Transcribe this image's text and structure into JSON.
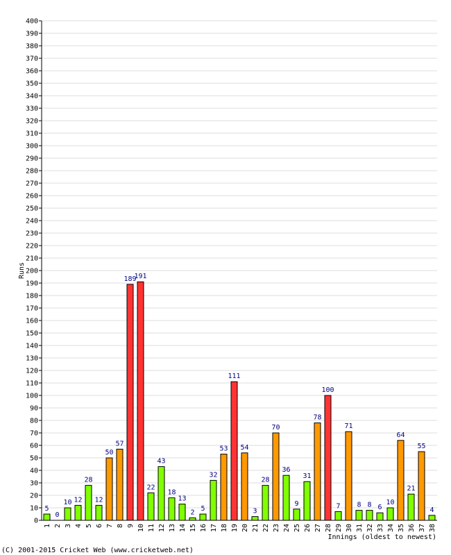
{
  "chart_data": {
    "type": "bar",
    "ylabel": "Runs",
    "xlabel": "Innings (oldest to newest)",
    "ylim": [
      0,
      400
    ],
    "y_ticks": [
      0,
      10,
      20,
      30,
      40,
      50,
      60,
      70,
      80,
      90,
      100,
      110,
      120,
      130,
      140,
      150,
      160,
      170,
      180,
      190,
      200,
      210,
      220,
      230,
      240,
      250,
      260,
      270,
      280,
      290,
      300,
      310,
      320,
      330,
      340,
      350,
      360,
      370,
      380,
      390,
      400
    ],
    "categories": [
      "1",
      "2",
      "3",
      "4",
      "5",
      "6",
      "7",
      "8",
      "9",
      "10",
      "11",
      "12",
      "13",
      "14",
      "15",
      "16",
      "17",
      "18",
      "19",
      "20",
      "21",
      "22",
      "23",
      "24",
      "25",
      "26",
      "27",
      "28",
      "29",
      "30",
      "31",
      "32",
      "33",
      "34",
      "35",
      "36",
      "37",
      "38"
    ],
    "values": [
      5,
      0,
      10,
      12,
      28,
      12,
      50,
      57,
      189,
      191,
      22,
      43,
      18,
      13,
      2,
      5,
      32,
      53,
      111,
      54,
      3,
      28,
      70,
      36,
      9,
      31,
      78,
      100,
      7,
      71,
      8,
      8,
      6,
      10,
      64,
      21,
      55,
      4
    ],
    "value_labels": [
      "5",
      "0",
      "10",
      "12",
      "28",
      "12",
      "50",
      "57",
      "189",
      "191",
      "22",
      "43",
      "18",
      "13",
      "2",
      "5",
      "32",
      "53",
      "111",
      "54",
      "3",
      "28",
      "70",
      "36",
      "9",
      "31",
      "78",
      "100",
      "7",
      "71",
      "8",
      "8",
      "6",
      "10",
      "64",
      "21",
      "55",
      "4"
    ],
    "grid": true,
    "colors": {
      "under_50": "#80ff00",
      "fifty": "#ff9900",
      "hundred": "#ff3333",
      "label": "#000080",
      "grid": "#dddddd"
    }
  },
  "footer": {
    "copyright": "(C) 2001-2015 Cricket Web (www.cricketweb.net)"
  }
}
